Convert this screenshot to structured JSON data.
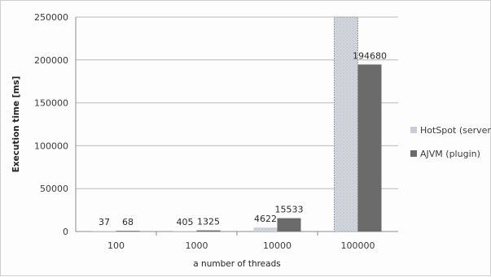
{
  "chart_data": {
    "type": "bar",
    "title": "",
    "xlabel": "a number of threads",
    "ylabel": "Execution time [ms]",
    "categories": [
      "100",
      "1000",
      "10000",
      "100000"
    ],
    "series": [
      {
        "name": "HotSpot (server)",
        "values": [
          37,
          405,
          4622,
          250000
        ],
        "data_labels": [
          "37",
          "405",
          "4622",
          ""
        ],
        "color": "#c9cdd3"
      },
      {
        "name": "AJVM (plugin)",
        "values": [
          68,
          1325,
          15533,
          194680
        ],
        "data_labels": [
          "68",
          "1325",
          "15533",
          "194680"
        ],
        "color": "#6b6b6b"
      }
    ],
    "ylim": [
      0,
      250000
    ],
    "yticks": [
      0,
      50000,
      100000,
      150000,
      200000,
      250000
    ],
    "ytick_labels": [
      "0",
      "50000",
      "100000",
      "150000",
      "200000",
      "250000"
    ],
    "grid": true,
    "legend_position": "right"
  }
}
